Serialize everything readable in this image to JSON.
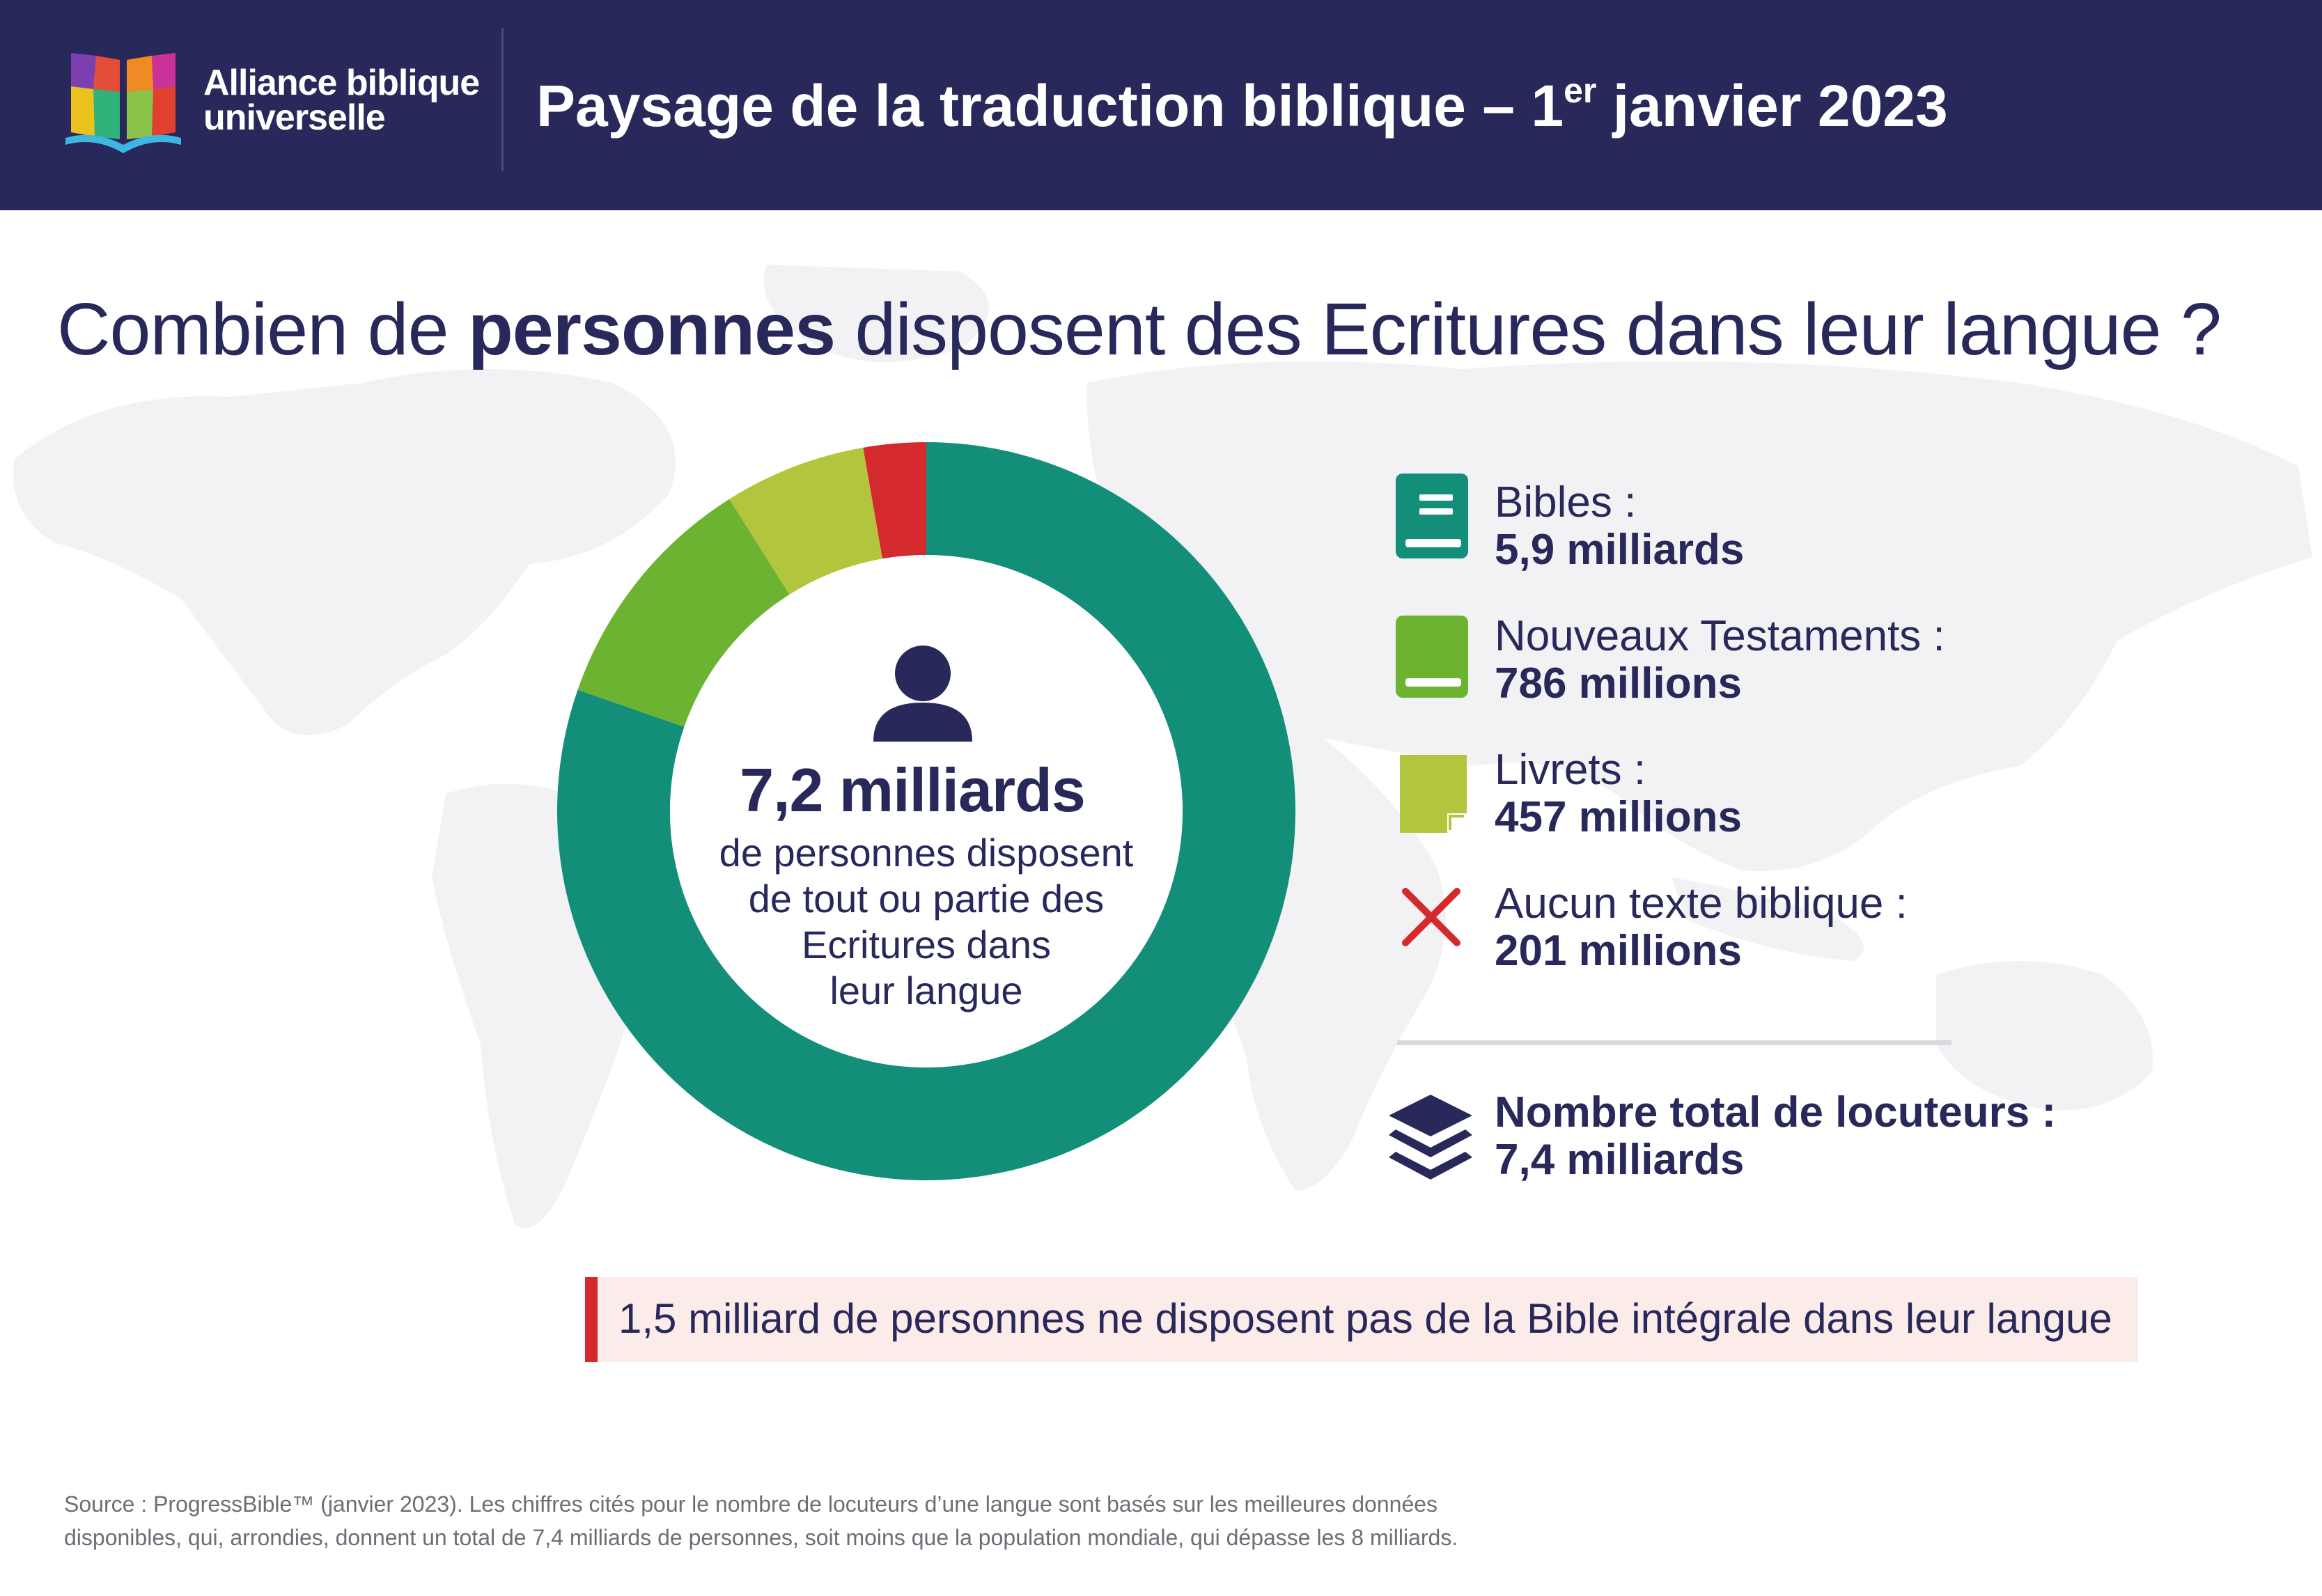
{
  "header": {
    "logo_line1": "Alliance biblique",
    "logo_line2": "universelle",
    "title_before": "Paysage de la traduction biblique – 1",
    "title_sup": "er",
    "title_after": " janvier 2023"
  },
  "question": {
    "before": "Combien de ",
    "bold": "personnes",
    "after": " disposent des Ecritures dans leur langue ?"
  },
  "donut_center": {
    "value": "7,2 milliards",
    "caption_lines": [
      "de personnes disposent",
      "de tout ou partie des",
      "Ecritures dans",
      "leur langue"
    ]
  },
  "legend": {
    "bibles": {
      "label": "Bibles :",
      "value": "5,9 milliards",
      "icon": "bible-book-icon"
    },
    "nt": {
      "label": "Nouveaux Testaments :",
      "value": "786 millions",
      "icon": "book-icon"
    },
    "livrets": {
      "label": "Livrets :",
      "value": "457 millions",
      "icon": "booklet-icon"
    },
    "none": {
      "label": "Aucun texte biblique :",
      "value": "201 millions",
      "icon": "cross-icon"
    },
    "total": {
      "label": "Nombre total de locuteurs :",
      "value": "7,4 milliards",
      "icon": "layers-icon"
    }
  },
  "callout": "1,5 milliard de personnes ne disposent pas de la Bible intégrale dans leur langue",
  "source_lines": [
    "Source : ProgressBible™ (janvier 2023). Les chiffres cités pour le nombre de locuteurs d’une langue sont basés sur les meilleures données",
    "disponibles, qui, arrondies, donnent un total de 7,4 milliards de personnes, soit moins que la population mondiale, qui dépasse les 8 milliards."
  ],
  "chart_data": {
    "type": "pie",
    "unit": "millions",
    "categories": [
      "Bibles",
      "Nouveaux Testaments",
      "Livrets",
      "Aucun texte biblique"
    ],
    "values": [
      5900,
      786,
      457,
      201
    ],
    "colors": [
      "#138f79",
      "#6bb330",
      "#b3c53c",
      "#d42a2e"
    ],
    "center_label": "7,2 milliards"
  },
  "colors": {
    "header_bg": "#28285a",
    "text": "#28285a",
    "accent_red": "#d42a2e",
    "callout_bg": "#fbece9"
  }
}
